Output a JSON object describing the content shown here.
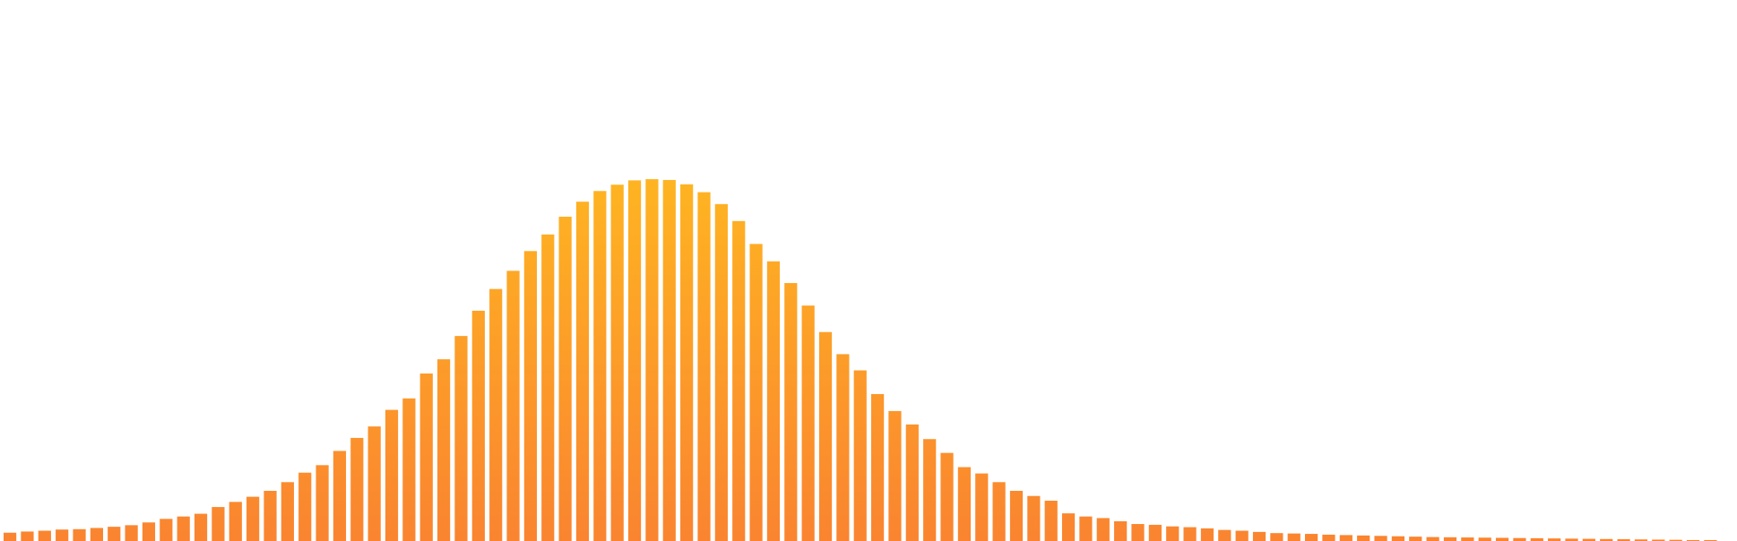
{
  "chart_data": {
    "type": "bar",
    "title": "",
    "xlabel": "",
    "ylabel": "",
    "ylim": [
      0,
      100
    ],
    "grid": false,
    "legend": "none",
    "colors": {
      "top": "#FFBA20",
      "bottom": "#FA8430"
    },
    "values": [
      2.1,
      2.4,
      2.6,
      2.9,
      3.0,
      3.3,
      3.6,
      4.0,
      4.7,
      5.6,
      6.2,
      6.9,
      8.6,
      9.9,
      11.2,
      12.7,
      14.9,
      17.3,
      19.2,
      22.8,
      26.1,
      29.0,
      33.2,
      36.1,
      42.4,
      46.0,
      51.9,
      58.3,
      63.8,
      68.4,
      73.4,
      77.6,
      82.1,
      85.9,
      88.6,
      90.2,
      91.3,
      91.6,
      91.4,
      90.3,
      88.3,
      85.3,
      81.0,
      75.2,
      70.8,
      65.3,
      59.6,
      52.9,
      47.3,
      43.2,
      37.2,
      32.9,
      29.5,
      25.8,
      22.3,
      18.7,
      17.1,
      14.9,
      12.7,
      11.4,
      10.2,
      7.0,
      6.2,
      5.8,
      5.0,
      4.3,
      4.1,
      3.7,
      3.5,
      3.2,
      2.8,
      2.6,
      2.3,
      2.0,
      1.9,
      1.8,
      1.6,
      1.5,
      1.4,
      1.3,
      1.2,
      1.1,
      1.0,
      0.95,
      0.9,
      0.85,
      0.8,
      0.75,
      0.7,
      0.65,
      0.6,
      0.55,
      0.5,
      0.45,
      0.4,
      0.35,
      0.3,
      0.2,
      0.1
    ]
  }
}
